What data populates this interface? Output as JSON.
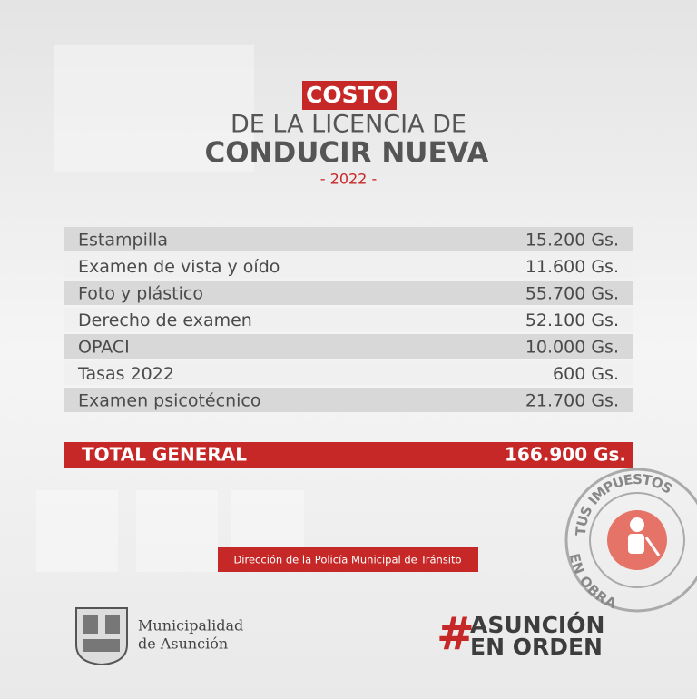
{
  "header": {
    "label": "COSTO",
    "title_line1": "DE LA LICENCIA DE",
    "title_line2": "CONDUCIR NUEVA",
    "year": "- 2022 -"
  },
  "table": {
    "rows": [
      [
        "Estampilla",
        "15.200 Gs."
      ],
      [
        "Examen de vista y oído",
        "11.600 Gs."
      ],
      [
        "Foto y plástico",
        "55.700 Gs."
      ],
      [
        "Derecho de examen",
        "52.100 Gs."
      ],
      [
        "OPACI",
        "10.000 Gs."
      ],
      [
        "Tasas 2022",
        "600 Gs."
      ],
      [
        "Examen psicotécnico",
        "21.700 Gs."
      ]
    ],
    "total": [
      "TOTAL GENERAL",
      "166.900 Gs."
    ]
  },
  "source": "Dirección de la Policía Municipal de Tránsito",
  "badge": {
    "top": "TUS IMPUESTOS",
    "bottom": "EN OBRA"
  },
  "logo": {
    "line1": "Municipalidad",
    "line2": "de Asunción"
  },
  "hashtag": {
    "symbol": "#",
    "line1": "ASUNCIÓN",
    "line2": "EN ORDEN"
  }
}
